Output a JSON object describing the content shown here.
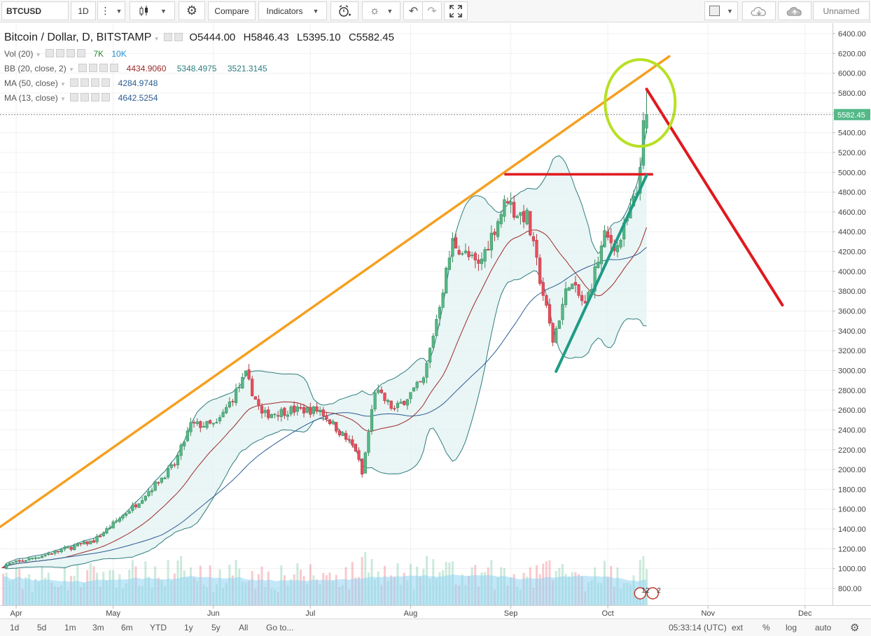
{
  "toolbar": {
    "symbol": "BTCUSD",
    "interval": "1D",
    "compare_label": "Compare",
    "indicators_label": "Indicators",
    "layout_name": "Unnamed"
  },
  "legend": {
    "title": "Bitcoin / Dollar, D, BITSTAMP",
    "open": "O5444.00",
    "high": "H5846.43",
    "low": "L5395.10",
    "close": "C5582.45",
    "vol_label": "Vol (20)",
    "vol_v1": "7K",
    "vol_v2": "10K",
    "bb_label": "BB (20, close, 2)",
    "bb_v1": "4434.9060",
    "bb_v2": "5348.4975",
    "bb_v3": "3521.3145",
    "ma50_label": "MA (50, close)",
    "ma50_value": "4284.9748",
    "ma13_label": "MA (13, close)",
    "ma13_value": "4642.5254"
  },
  "price_axis": {
    "ticks": [
      "6400.00",
      "6200.00",
      "6000.00",
      "5800.00",
      "5600.00",
      "5400.00",
      "5200.00",
      "5000.00",
      "4800.00",
      "4600.00",
      "4400.00",
      "4200.00",
      "4000.00",
      "3800.00",
      "3600.00",
      "3400.00",
      "3200.00",
      "3000.00",
      "2800.00",
      "2600.00",
      "2400.00",
      "2200.00",
      "2000.00",
      "1800.00",
      "1600.00",
      "1400.00",
      "1200.00",
      "1000.00",
      "800.00"
    ],
    "last_price": "5582.45"
  },
  "time_axis": {
    "labels": [
      "Apr",
      "May",
      "Jun",
      "Jul",
      "Aug",
      "Sep",
      "Oct",
      "Nov",
      "Dec"
    ]
  },
  "bottom": {
    "ranges": [
      "1d",
      "5d",
      "1m",
      "3m",
      "6m",
      "YTD",
      "1y",
      "5y",
      "All"
    ],
    "goto_label": "Go to...",
    "clock": "05:33:14 (UTC)",
    "ext": "ext",
    "pct": "%",
    "log": "log",
    "auto": "auto"
  },
  "badges": {
    "event_count_a": "12",
    "event_count_b": "2"
  },
  "colors": {
    "up": "#53b987",
    "down": "#eb4d5c",
    "bb_fill": "#e3f2f2",
    "bb_line": "#2e7d7d",
    "ma50": "#2b5d94",
    "ma13": "#9c2a2a",
    "vol_ma": "#8fd3f2",
    "resistance_line": "#f5a020",
    "horizontal_level": "#e0191e",
    "support_line": "#1f9b85",
    "projection_line": "#e0191e",
    "highlight_circle": "#b8e024"
  },
  "chart_data": {
    "type": "candlestick",
    "title": "Bitcoin / Dollar, D, BITSTAMP",
    "x_range": [
      "2017-03-27",
      "2017-12-03"
    ],
    "ylim": [
      700,
      6500
    ],
    "y_scale": "linear",
    "grid": true,
    "anchors": [
      {
        "date": "2017-03-28",
        "close": 1030
      },
      {
        "date": "2017-04-10",
        "close": 1140
      },
      {
        "date": "2017-04-25",
        "close": 1280
      },
      {
        "date": "2017-05-08",
        "close": 1650
      },
      {
        "date": "2017-05-20",
        "close": 2050
      },
      {
        "date": "2017-05-25",
        "close": 2450
      },
      {
        "date": "2017-06-02",
        "close": 2450
      },
      {
        "date": "2017-06-11",
        "close": 2950
      },
      {
        "date": "2017-06-16",
        "close": 2550
      },
      {
        "date": "2017-06-25",
        "close": 2600
      },
      {
        "date": "2017-07-04",
        "close": 2600
      },
      {
        "date": "2017-07-15",
        "close": 2200
      },
      {
        "date": "2017-07-17",
        "close": 1950
      },
      {
        "date": "2017-07-21",
        "close": 2800
      },
      {
        "date": "2017-07-27",
        "close": 2600
      },
      {
        "date": "2017-08-05",
        "close": 2900
      },
      {
        "date": "2017-08-14",
        "close": 4300
      },
      {
        "date": "2017-08-17",
        "close": 4200
      },
      {
        "date": "2017-08-22",
        "close": 4050
      },
      {
        "date": "2017-08-31",
        "close": 4750
      },
      {
        "date": "2017-09-02",
        "close": 4600
      },
      {
        "date": "2017-09-06",
        "close": 4550
      },
      {
        "date": "2017-09-14",
        "close": 3300
      },
      {
        "date": "2017-09-19",
        "close": 3900
      },
      {
        "date": "2017-09-24",
        "close": 3650
      },
      {
        "date": "2017-09-30",
        "close": 4350
      },
      {
        "date": "2017-10-04",
        "close": 4250
      },
      {
        "date": "2017-10-08",
        "close": 4600
      },
      {
        "date": "2017-10-10",
        "close": 4800
      },
      {
        "date": "2017-10-12",
        "close": 5444
      },
      {
        "date": "2017-10-13",
        "close": 5582.45
      }
    ],
    "last_candle": {
      "date": "2017-10-13",
      "open": 5444.0,
      "high": 5846.43,
      "low": 5395.1,
      "close": 5582.45
    },
    "indicators": {
      "bb": {
        "basis": 4434.906,
        "upper": 5348.4975,
        "lower": 3521.3145
      },
      "ma50": 4284.9748,
      "ma13": 4642.5254,
      "volume_ma_period": 20
    },
    "annotations": {
      "rising_resistance": {
        "from": {
          "date": "2017-03-27",
          "price": 1420
        },
        "to": {
          "date": "2017-10-20",
          "price": 6170
        }
      },
      "horizontal_level": {
        "from": "2017-08-30",
        "to": "2017-10-15",
        "price": 4980
      },
      "rising_support": {
        "from": {
          "date": "2017-09-15",
          "price": 2990
        },
        "to": {
          "date": "2017-10-13",
          "price": 4970
        }
      },
      "projection": {
        "from": {
          "date": "2017-10-13",
          "price": 5840
        },
        "to": {
          "date": "2017-11-24",
          "price": 3660
        }
      },
      "highlight_circle": {
        "date": "2017-10-11",
        "price": 5700
      }
    }
  }
}
